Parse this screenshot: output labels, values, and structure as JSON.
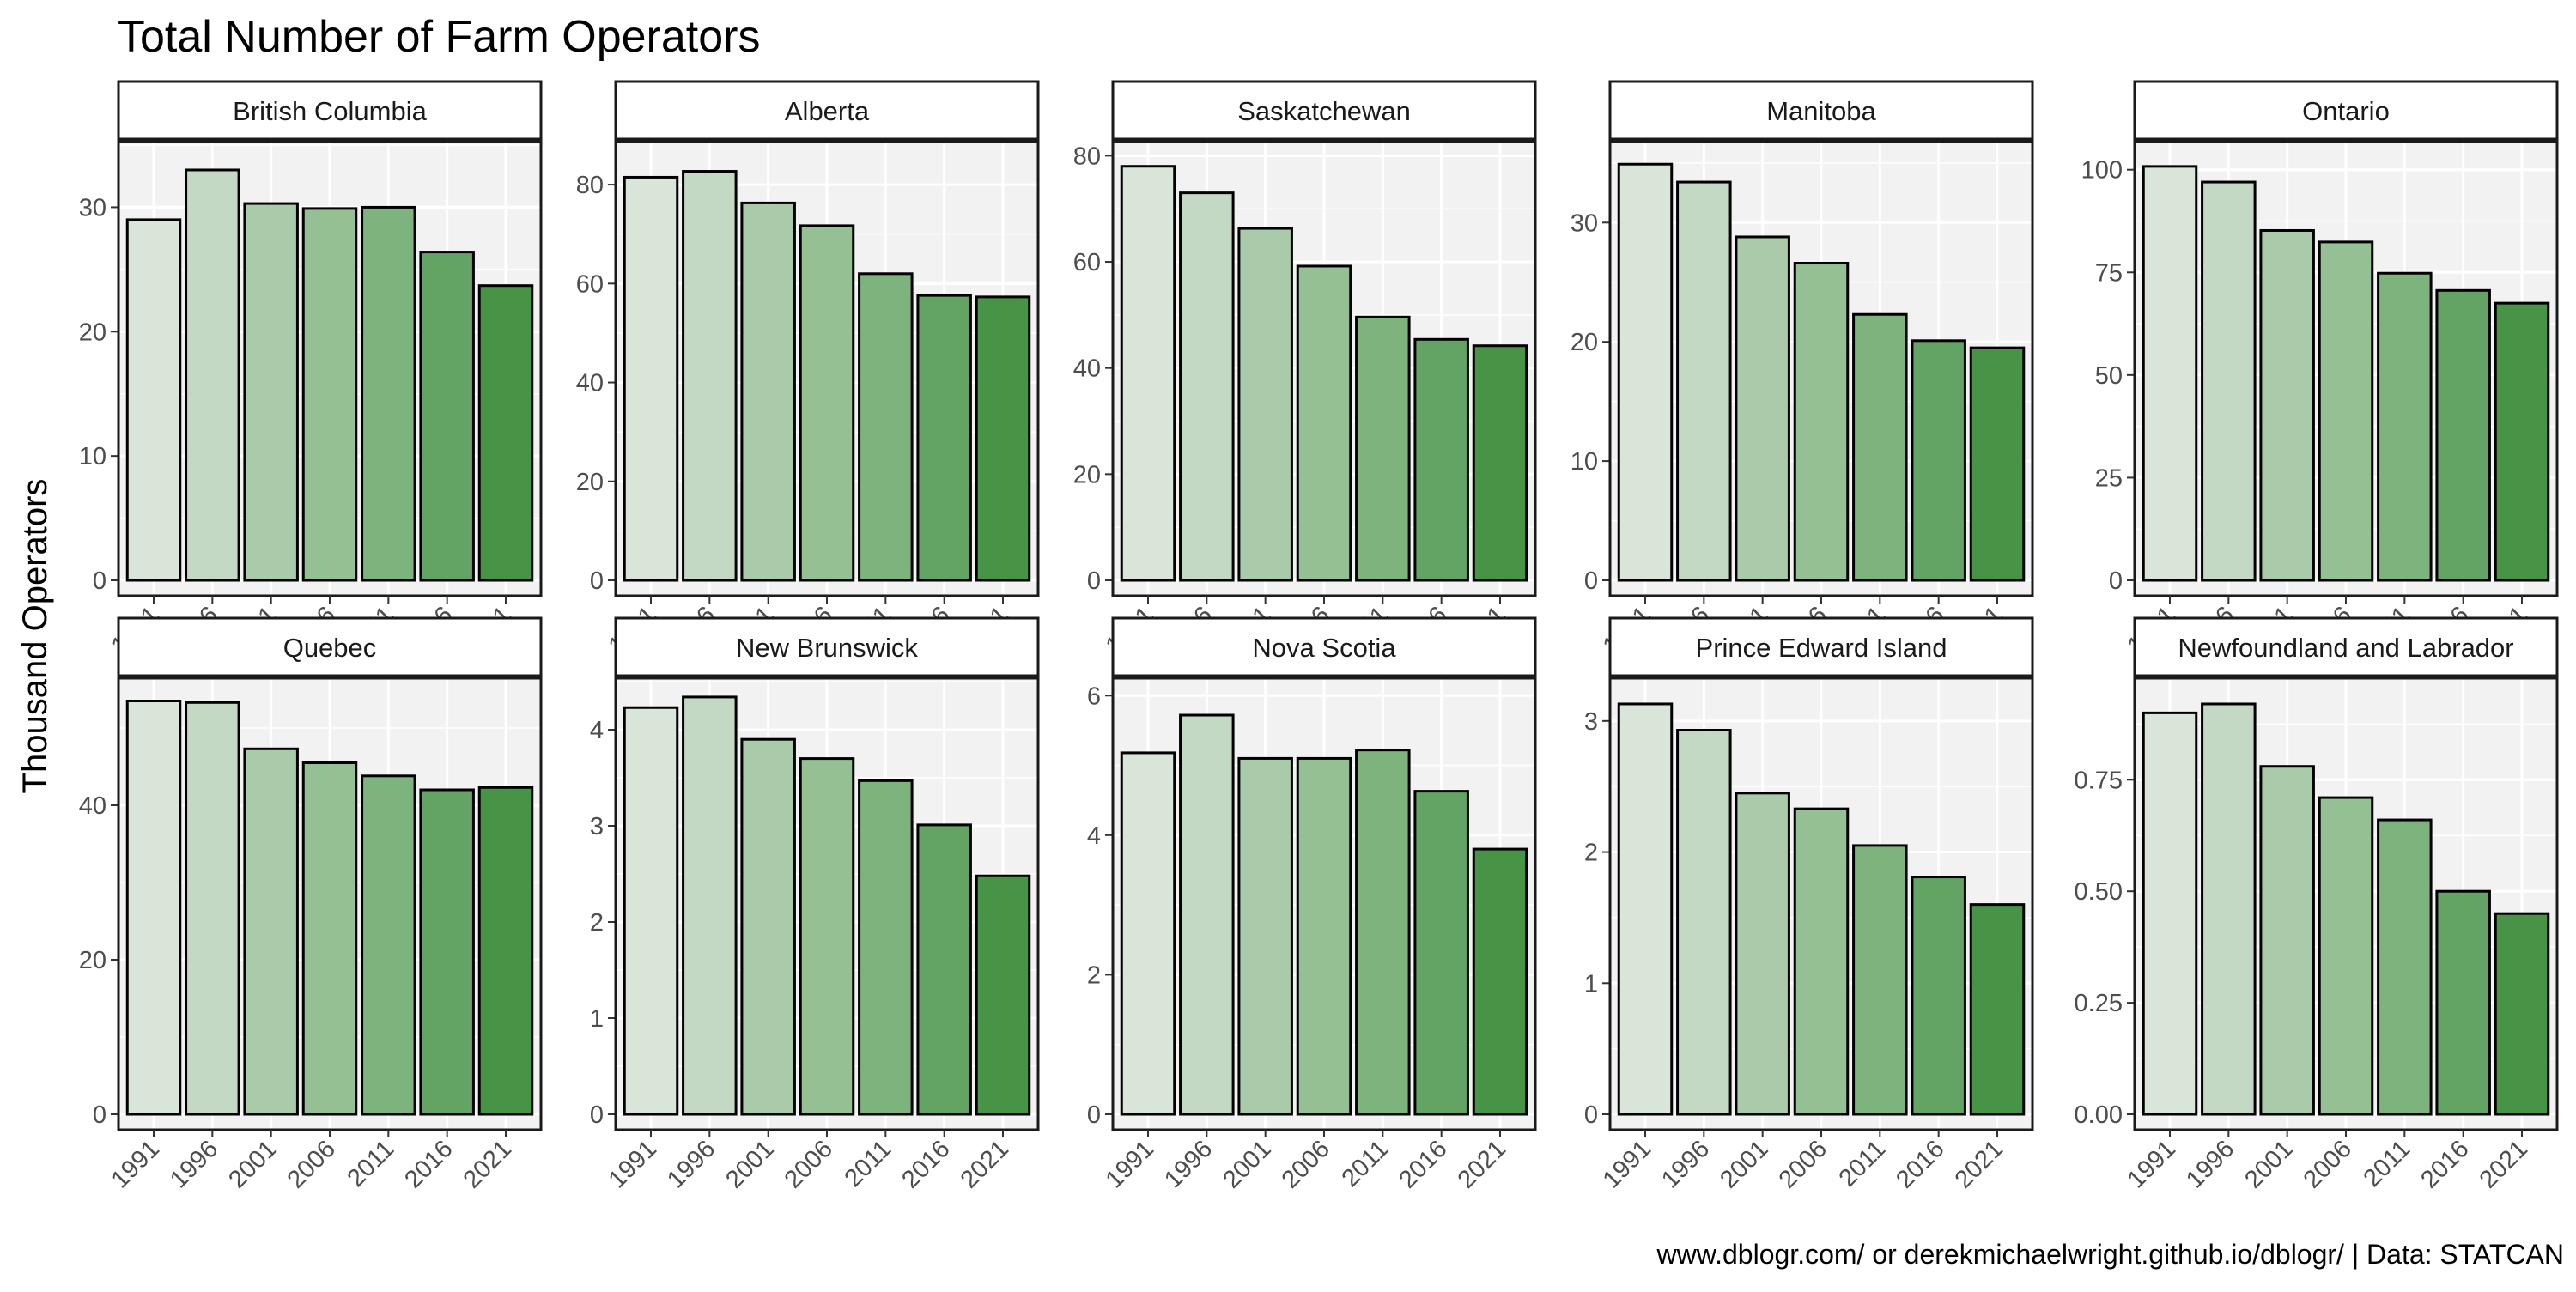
{
  "title": "Total Number of Farm Operators",
  "ylabel": "Thousand Operators",
  "caption": "www.dblogr.com/ or derekmichaelwright.github.io/dblogr/ | Data: STATCAN",
  "colors": {
    "panel_bg": "#f2f2f2",
    "grid": "#ffffff",
    "bar_stroke": "#000000",
    "bar_fills": [
      "#dae5da",
      "#c4d9c4",
      "#a9cba9",
      "#94c094",
      "#7db37d",
      "#63a363",
      "#479447"
    ]
  },
  "chart_data": {
    "type": "bar",
    "facet_layout": "2 rows x 5 columns, free y scales",
    "grid": true,
    "categories": [
      "1991",
      "1996",
      "2001",
      "2006",
      "2011",
      "2016",
      "2021"
    ],
    "facets": [
      {
        "name": "British Columbia",
        "ylim": [
          0,
          35
        ],
        "yticks": [
          0,
          10,
          20,
          30
        ],
        "tick_labels": [
          "0",
          "10",
          "20",
          "30"
        ],
        "values": [
          29.0,
          33.0,
          30.3,
          29.9,
          30.0,
          26.4,
          23.7
        ]
      },
      {
        "name": "Alberta",
        "ylim": [
          0,
          88
        ],
        "yticks": [
          0,
          20,
          40,
          60,
          80
        ],
        "tick_labels": [
          "0",
          "20",
          "40",
          "60",
          "80"
        ],
        "values": [
          81.5,
          82.7,
          76.3,
          71.7,
          62.0,
          57.6,
          57.3
        ]
      },
      {
        "name": "Saskatchewan",
        "ylim": [
          0,
          82
        ],
        "yticks": [
          0,
          20,
          40,
          60,
          80
        ],
        "tick_labels": [
          "0",
          "20",
          "40",
          "60",
          "80"
        ],
        "values": [
          78.0,
          73.0,
          66.3,
          59.2,
          49.6,
          45.4,
          44.2
        ]
      },
      {
        "name": "Manitoba",
        "ylim": [
          0,
          36.5
        ],
        "yticks": [
          0,
          10,
          20,
          30
        ],
        "tick_labels": [
          "0",
          "10",
          "20",
          "30"
        ],
        "values": [
          34.9,
          33.4,
          28.8,
          26.6,
          22.3,
          20.1,
          19.5
        ]
      },
      {
        "name": "Ontario",
        "ylim": [
          0,
          106
        ],
        "yticks": [
          0,
          25,
          50,
          75,
          100
        ],
        "tick_labels": [
          "0",
          "25",
          "50",
          "75",
          "100"
        ],
        "values": [
          100.8,
          97.0,
          85.2,
          82.4,
          74.8,
          70.6,
          67.5
        ]
      },
      {
        "name": "Quebec",
        "ylim": [
          0,
          56
        ],
        "yticks": [
          0,
          20,
          40
        ],
        "tick_labels": [
          "0",
          "20",
          "40"
        ],
        "values": [
          53.5,
          53.3,
          47.3,
          45.5,
          43.8,
          42.0,
          42.3
        ]
      },
      {
        "name": "New Brunswick",
        "ylim": [
          0,
          4.5
        ],
        "yticks": [
          0,
          1,
          2,
          3,
          4
        ],
        "tick_labels": [
          "0",
          "1",
          "2",
          "3",
          "4"
        ],
        "values": [
          4.23,
          4.34,
          3.9,
          3.7,
          3.47,
          3.01,
          2.48
        ]
      },
      {
        "name": "Nova Scotia",
        "ylim": [
          0,
          6.2
        ],
        "yticks": [
          0,
          2,
          4,
          6
        ],
        "tick_labels": [
          "0",
          "2",
          "4",
          "6"
        ],
        "values": [
          5.18,
          5.72,
          5.1,
          5.1,
          5.22,
          4.63,
          3.8
        ]
      },
      {
        "name": "Prince Edward Island",
        "ylim": [
          0,
          3.3
        ],
        "yticks": [
          0,
          1,
          2,
          3
        ],
        "tick_labels": [
          "0",
          "1",
          "2",
          "3"
        ],
        "values": [
          3.13,
          2.93,
          2.45,
          2.33,
          2.05,
          1.81,
          1.6
        ]
      },
      {
        "name": "Newfoundland and Labrador",
        "ylim": [
          0,
          0.97
        ],
        "yticks": [
          0,
          0.25,
          0.5,
          0.75
        ],
        "tick_labels": [
          "0.00",
          "0.25",
          "0.50",
          "0.75"
        ],
        "values": [
          0.9,
          0.92,
          0.78,
          0.71,
          0.66,
          0.5,
          0.45
        ]
      }
    ]
  }
}
